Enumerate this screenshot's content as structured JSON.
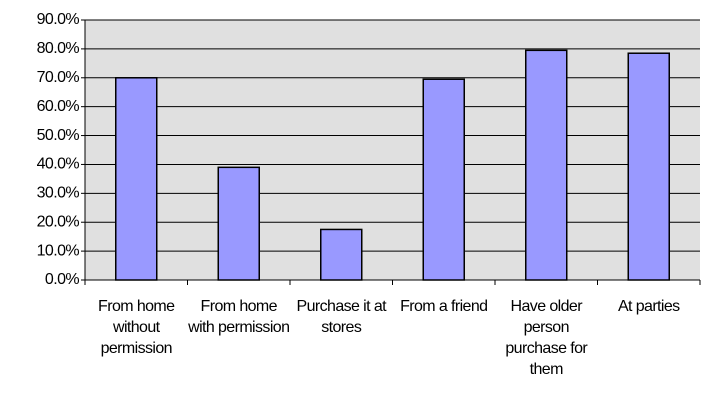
{
  "chart_data": {
    "type": "bar",
    "categories": [
      "From home without permission",
      "From home with permission",
      "Purchase it at stores",
      "From a friend",
      "Have older person purchase for them",
      "At parties"
    ],
    "values": [
      70,
      39,
      17.5,
      69.5,
      79.5,
      78.5
    ],
    "color": "#9999ff",
    "ylim": [
      0,
      90
    ],
    "yticks": [
      {
        "value": 0,
        "label": "0.0%"
      },
      {
        "value": 10,
        "label": "10.0%"
      },
      {
        "value": 20,
        "label": "20.0%"
      },
      {
        "value": 30,
        "label": "30.0%"
      },
      {
        "value": 40,
        "label": "40.0%"
      },
      {
        "value": 50,
        "label": "50.0%"
      },
      {
        "value": 60,
        "label": "60.0%"
      },
      {
        "value": 70,
        "label": "70.0%"
      },
      {
        "value": 80,
        "label": "80.0%"
      },
      {
        "value": 90,
        "label": "90.0%"
      }
    ],
    "grid": true
  }
}
